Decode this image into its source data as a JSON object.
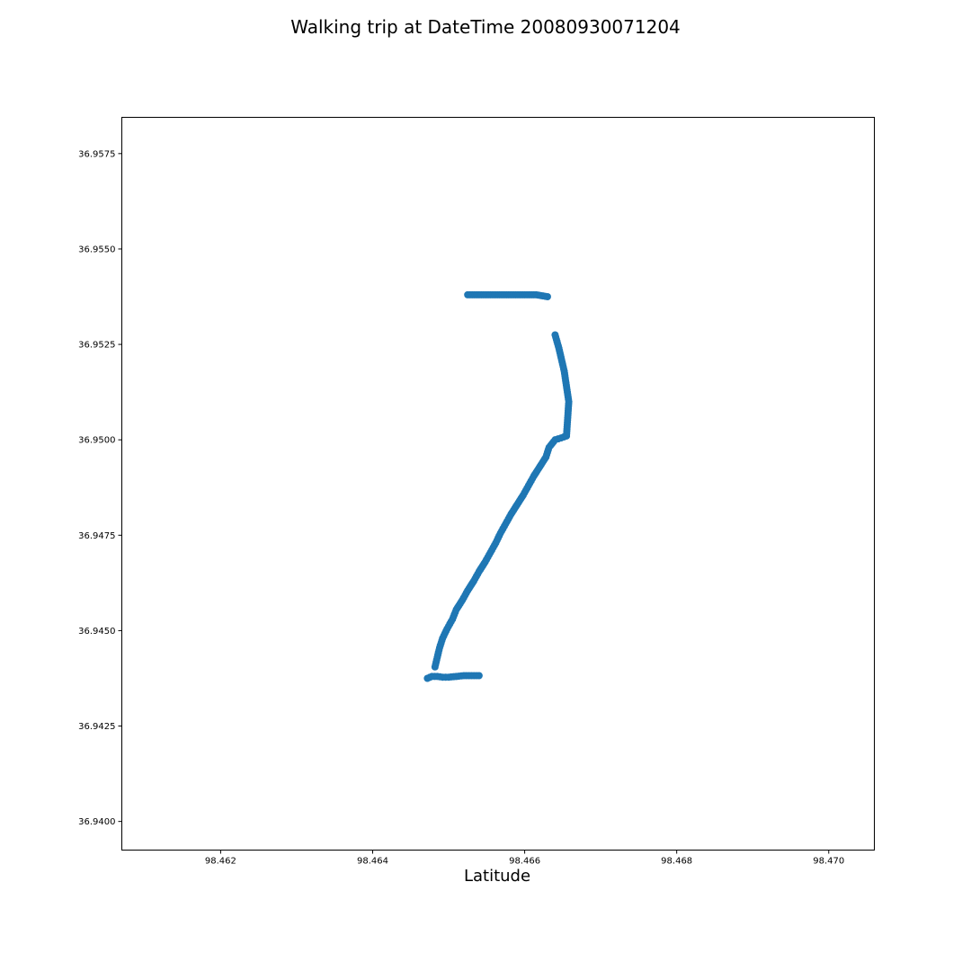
{
  "chart_data": {
    "type": "scatter",
    "title": "Walking trip at DateTime 20080930071204",
    "xlabel": "Latitude",
    "ylabel": "",
    "xlim": [
      98.4607,
      98.4706
    ],
    "ylim": [
      36.93925,
      36.95845
    ],
    "xticks": [
      98.462,
      98.464,
      98.466,
      98.468,
      98.47
    ],
    "xtick_labels": [
      "98.462",
      "98.464",
      "98.466",
      "98.468",
      "98.470"
    ],
    "yticks": [
      36.94,
      36.9425,
      36.945,
      36.9475,
      36.95,
      36.9525,
      36.955,
      36.9575
    ],
    "ytick_labels": [
      "36.9400",
      "36.9425",
      "36.9450",
      "36.9475",
      "36.9500",
      "36.9525",
      "36.9550",
      "36.9575"
    ],
    "grid": false,
    "marker_color": "#1f77b4",
    "series": [
      {
        "x": [
          98.46472,
          98.46478,
          98.46485,
          98.46492,
          98.465,
          98.4651,
          98.4652,
          98.4653,
          98.4654,
          98.46482,
          98.46485,
          98.46488,
          98.46492,
          98.46498,
          98.46505,
          98.4651,
          98.46518,
          98.46525,
          98.46533,
          98.4654,
          98.46548,
          98.46555,
          98.46562,
          98.46568,
          98.46575,
          98.46582,
          98.4659,
          98.46598,
          98.46605,
          98.46612,
          98.4662,
          98.46628,
          98.46632,
          98.4664,
          98.46648,
          98.46655,
          98.46658,
          98.46652,
          98.46645,
          98.4664,
          98.4663,
          98.46615,
          98.466,
          98.46585,
          98.4657,
          98.46555,
          98.4654,
          98.46525
        ],
        "y": [
          36.94375,
          36.9438,
          36.9438,
          36.94378,
          36.94378,
          36.9438,
          36.94382,
          36.94382,
          36.94382,
          36.94405,
          36.9443,
          36.94455,
          36.9448,
          36.94505,
          36.9453,
          36.94555,
          36.9458,
          36.94605,
          36.9463,
          36.94655,
          36.9468,
          36.94705,
          36.9473,
          36.94755,
          36.9478,
          36.94805,
          36.9483,
          36.94855,
          36.9488,
          36.94905,
          36.9493,
          36.94955,
          36.9498,
          36.95,
          36.95005,
          36.9501,
          36.951,
          36.9518,
          36.9524,
          36.95275,
          36.95375,
          36.9538,
          36.9538,
          36.9538,
          36.9538,
          36.9538,
          36.9538,
          36.9538
        ]
      }
    ]
  }
}
